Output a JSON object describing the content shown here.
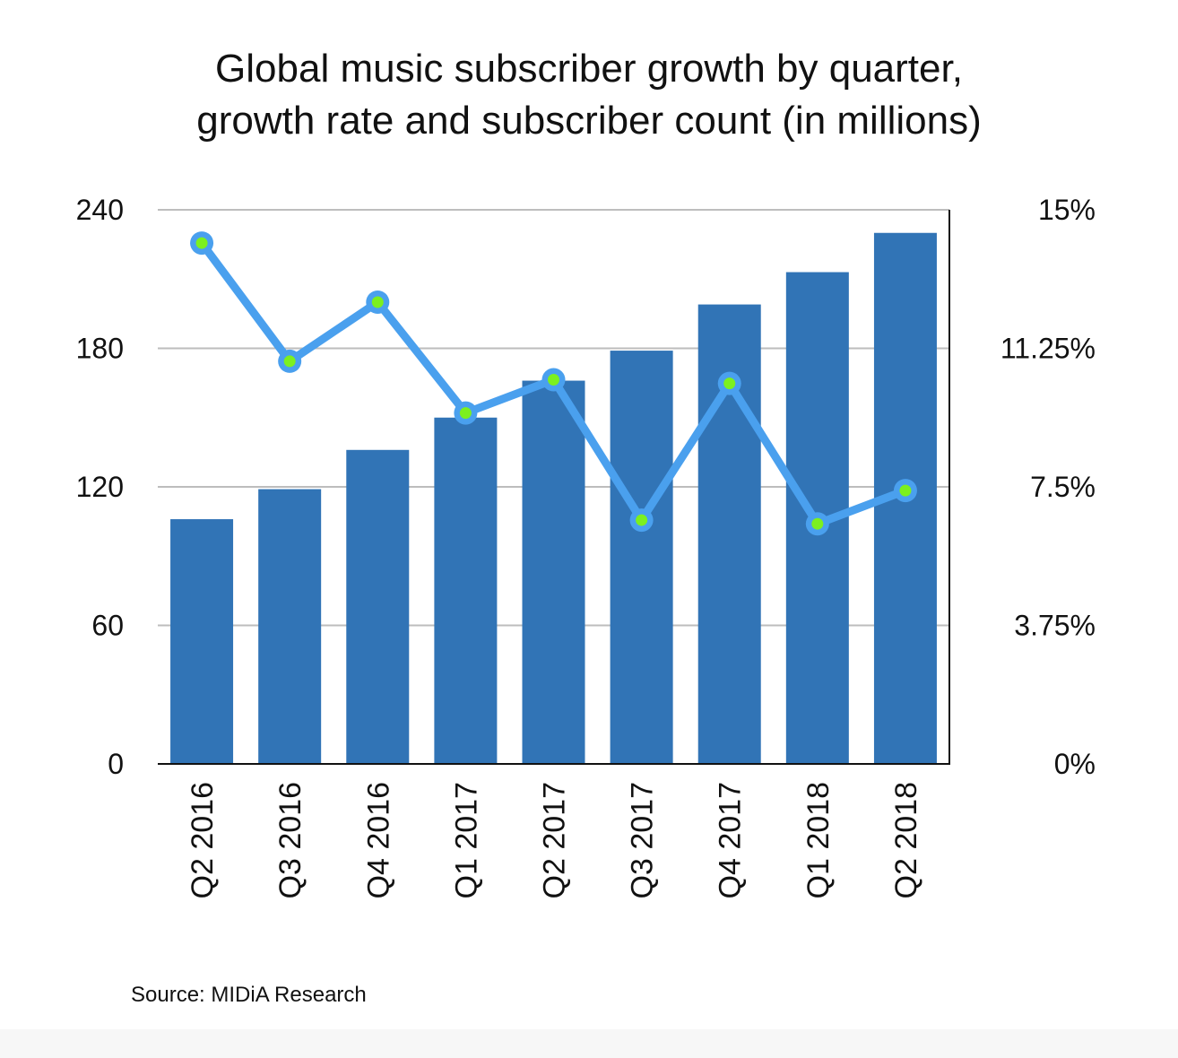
{
  "chart_data": {
    "type": "bar",
    "title_line1": "Global music subscriber growth by quarter,",
    "title_line2": "growth rate and subscriber count (in millions)",
    "categories": [
      "Q2 2016",
      "Q3 2016",
      "Q4 2016",
      "Q1 2017",
      "Q2 2017",
      "Q3 2017",
      "Q4 2017",
      "Q1 2018",
      "Q2 2018"
    ],
    "series": [
      {
        "kind": "bar",
        "axis": "left",
        "values": [
          106,
          119,
          136,
          150,
          166,
          179,
          199,
          213,
          230
        ],
        "color": "#3174b6"
      },
      {
        "kind": "line",
        "axis": "right",
        "values": [
          14.1,
          10.9,
          12.5,
          9.5,
          10.4,
          6.6,
          10.3,
          6.5,
          7.4
        ],
        "color": "#4aa0ee",
        "marker_color": "#7cf01f"
      }
    ],
    "left_axis": {
      "ylim": [
        0,
        240
      ],
      "ticks": [
        "0",
        "60",
        "120",
        "180",
        "240"
      ]
    },
    "right_axis": {
      "ylim": [
        0,
        15
      ],
      "ticks": [
        "0%",
        "3.75%",
        "7.5%",
        "11.25%",
        "15%"
      ]
    },
    "grid": true,
    "source": "Source: MIDiA Research"
  }
}
